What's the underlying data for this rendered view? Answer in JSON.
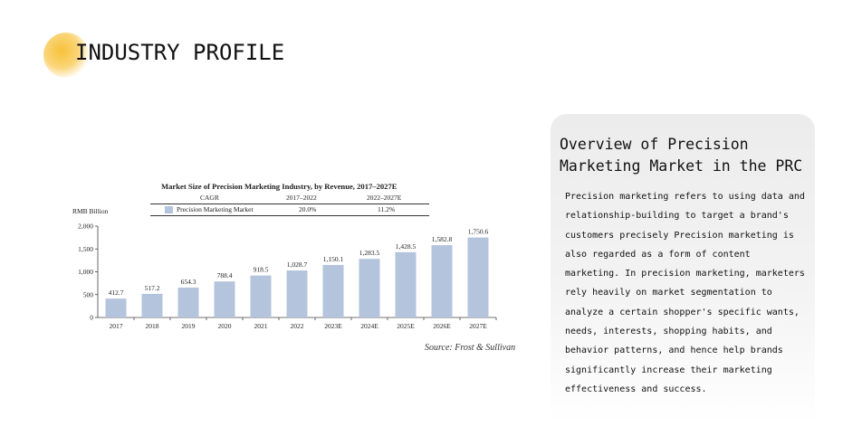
{
  "page": {
    "title": "INDUSTRY PROFILE",
    "source": "Source: Frost & Sullivan"
  },
  "panel": {
    "title": "Overview of Precision Marketing Market in the PRC",
    "body": "Precision marketing refers to using data and relationship-building to target a brand's customers precisely Precision marketing is also regarded as a form of content marketing. In precision marketing, marketers rely heavily on market segmentation to analyze a certain shopper's specific wants, needs, interests, shopping habits, and behavior patterns, and hence help brands significantly increase their marketing effectiveness and success."
  },
  "colors": {
    "accent": "#f7c23a",
    "bar": "#b3c4dc",
    "panel_bg": "#efefef"
  },
  "chart_data": {
    "type": "bar",
    "title": "Market Size of Precision Marketing Industry, by Revenue, 2017–2027E",
    "ylabel": "RMB Billion",
    "xlabel": "",
    "categories": [
      "2017",
      "2018",
      "2019",
      "2020",
      "2021",
      "2022",
      "2023E",
      "2024E",
      "2025E",
      "2026E",
      "2027E"
    ],
    "values": [
      412.7,
      517.2,
      654.3,
      788.4,
      918.5,
      1028.7,
      1150.1,
      1283.5,
      1428.5,
      1582.8,
      1750.6
    ],
    "value_labels": [
      "412.7",
      "517.2",
      "654.3",
      "788.4",
      "918.5",
      "1,028.7",
      "1,150.1",
      "1,283.5",
      "1,428.5",
      "1,582.8",
      "1,750.6"
    ],
    "ylim": [
      0,
      2000
    ],
    "yticks": [
      0,
      500,
      1000,
      1500,
      2000
    ],
    "ytick_labels": [
      "0",
      "500",
      "1,000",
      "1,500",
      "2,000"
    ],
    "grid": false,
    "legend": {
      "header": [
        "CAGR",
        "2017–2022",
        "2022–2027E"
      ],
      "rows": [
        {
          "name": "Precision Marketing Market",
          "cagr_1": "20.0%",
          "cagr_2": "11.2%"
        }
      ]
    }
  }
}
